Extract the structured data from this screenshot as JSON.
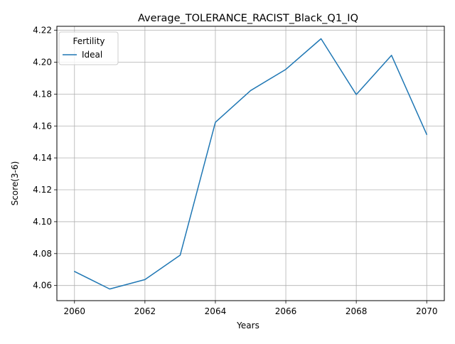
{
  "chart_data": {
    "type": "line",
    "title": "Average_TOLERANCE_RACIST_Black_Q1_IQ",
    "xlabel": "Years",
    "ylabel": "Score(3-6)",
    "x": [
      2060,
      2061,
      2062,
      2063,
      2064,
      2065,
      2066,
      2067,
      2068,
      2069,
      2070
    ],
    "series": [
      {
        "name": "Ideal",
        "color": "#1f77b4",
        "values": [
          4.0688,
          4.0578,
          4.0637,
          4.079,
          4.1623,
          4.1822,
          4.1955,
          4.2147,
          4.1797,
          4.2043,
          4.1547
        ]
      }
    ],
    "xlim": [
      2059.5,
      2070.5
    ],
    "ylim": [
      4.0505,
      4.2225
    ],
    "xticks": [
      2060,
      2062,
      2064,
      2066,
      2068,
      2070
    ],
    "yticks": [
      4.06,
      4.08,
      4.1,
      4.12,
      4.14,
      4.16,
      4.18,
      4.2,
      4.22
    ],
    "ytick_labels": [
      "4.06",
      "4.08",
      "4.10",
      "4.12",
      "4.14",
      "4.16",
      "4.18",
      "4.20",
      "4.22"
    ],
    "grid": true,
    "legend": {
      "title": "Fertility",
      "placement": "top-left"
    }
  }
}
